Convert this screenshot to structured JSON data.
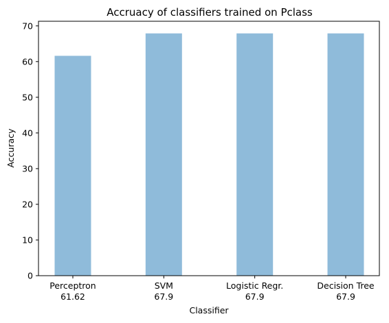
{
  "chart_data": {
    "type": "bar",
    "title": "Accruacy of classifiers trained on Pclass",
    "xlabel": "Classifier",
    "ylabel": "Accuracy",
    "categories": [
      "Perceptron",
      "SVM",
      "Logistic Regr.",
      "Decision Tree"
    ],
    "category_value_labels": [
      "61.62",
      "67.9",
      "67.9",
      "67.9"
    ],
    "values": [
      61.62,
      67.9,
      67.9,
      67.9
    ],
    "ylim": [
      0,
      71.3
    ],
    "yticks": [
      0,
      10,
      20,
      30,
      40,
      50,
      60,
      70
    ],
    "bar_color": "#8fbbda",
    "grid": false,
    "legend": "none"
  }
}
